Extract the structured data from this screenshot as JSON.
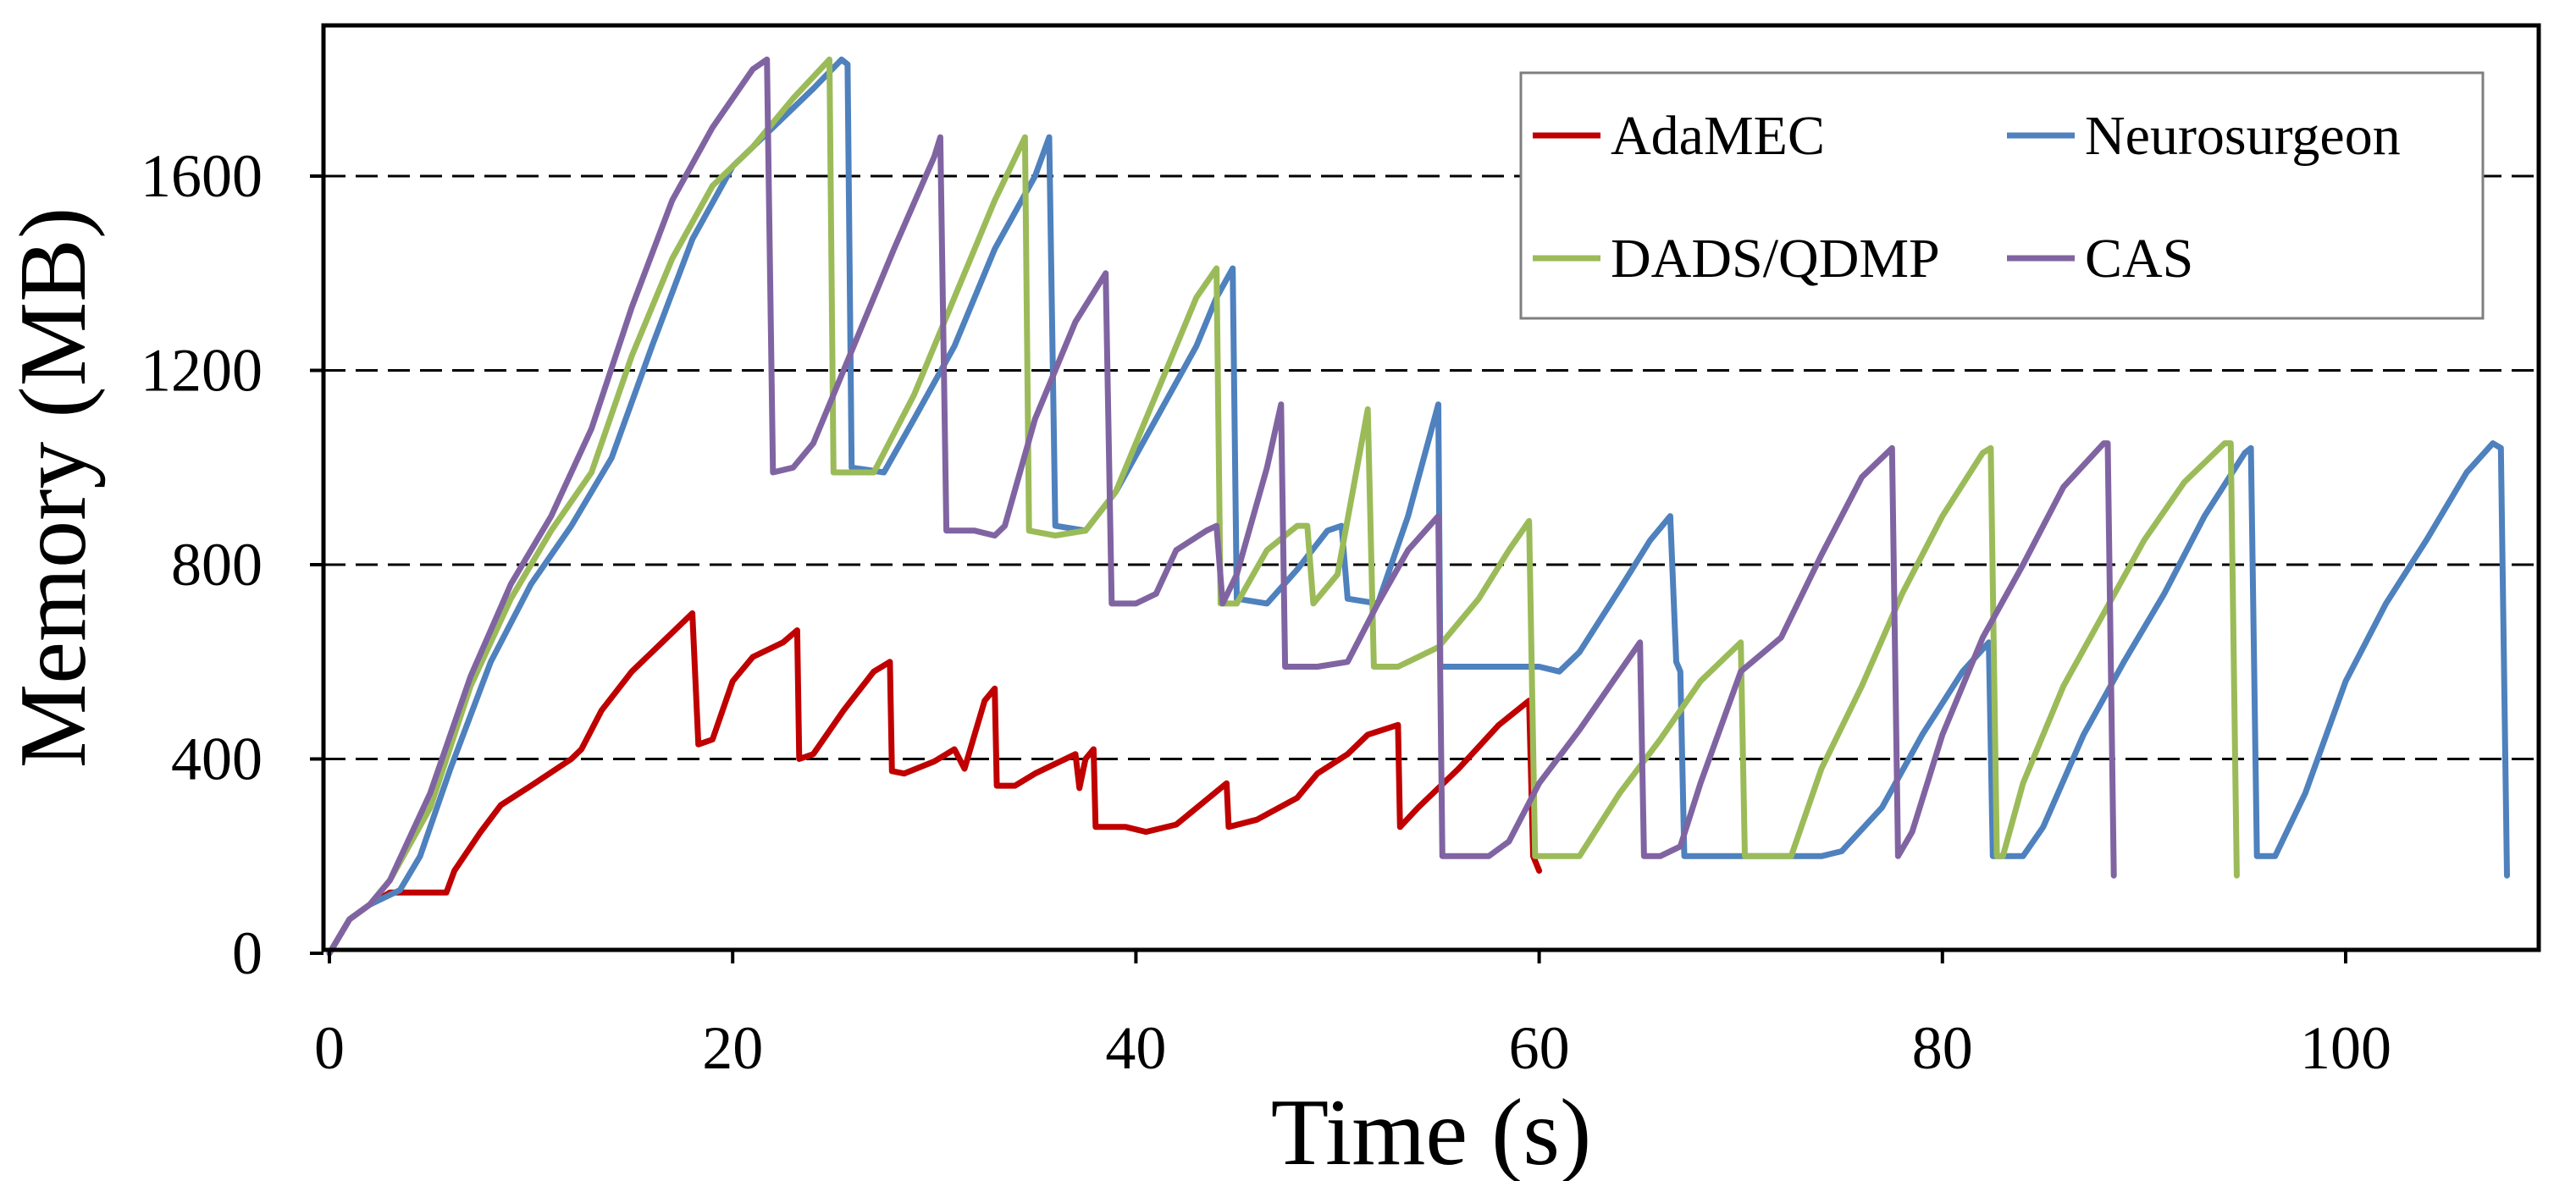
{
  "chart_data": {
    "type": "line",
    "xlabel": "Time (s)",
    "ylabel": "Memory (MB)",
    "xlim": [
      0,
      110
    ],
    "ylim": [
      0,
      1840
    ],
    "xticks": [
      0,
      20,
      40,
      60,
      80,
      100
    ],
    "yticks": [
      0,
      400,
      800,
      1200,
      1600
    ],
    "grid": "horizontal dashed at 400, 800, 1200, 1600",
    "legend_position": "top-right",
    "series": [
      {
        "name": "AdaMEC",
        "color": "#C00000",
        "points": [
          [
            0,
            0
          ],
          [
            1,
            70
          ],
          [
            2,
            100
          ],
          [
            3,
            125
          ],
          [
            5.8,
            125
          ],
          [
            6.2,
            170
          ],
          [
            7.5,
            250
          ],
          [
            8.5,
            305
          ],
          [
            10,
            345
          ],
          [
            12,
            400
          ],
          [
            12.5,
            420
          ],
          [
            13.5,
            500
          ],
          [
            15,
            580
          ],
          [
            16.5,
            640
          ],
          [
            18,
            700
          ],
          [
            18.3,
            430
          ],
          [
            19,
            440
          ],
          [
            20,
            560
          ],
          [
            21,
            610
          ],
          [
            22.5,
            640
          ],
          [
            23.2,
            665
          ],
          [
            23.3,
            400
          ],
          [
            24,
            410
          ],
          [
            25.5,
            500
          ],
          [
            27,
            580
          ],
          [
            27.8,
            600
          ],
          [
            27.9,
            375
          ],
          [
            28.5,
            370
          ],
          [
            30,
            395
          ],
          [
            31,
            420
          ],
          [
            31.5,
            380
          ],
          [
            32,
            450
          ],
          [
            32.5,
            520
          ],
          [
            33,
            545
          ],
          [
            33.1,
            345
          ],
          [
            34,
            345
          ],
          [
            35,
            370
          ],
          [
            36,
            390
          ],
          [
            37,
            410
          ],
          [
            37.2,
            340
          ],
          [
            37.5,
            400
          ],
          [
            37.9,
            420
          ],
          [
            38,
            260
          ],
          [
            39.5,
            260
          ],
          [
            40.5,
            250
          ],
          [
            42,
            265
          ],
          [
            44.5,
            350
          ],
          [
            44.6,
            260
          ],
          [
            46,
            275
          ],
          [
            48,
            320
          ],
          [
            49,
            370
          ],
          [
            50.5,
            410
          ],
          [
            51.5,
            450
          ],
          [
            53,
            470
          ],
          [
            53.1,
            260
          ],
          [
            54,
            300
          ],
          [
            56,
            380
          ],
          [
            58,
            470
          ],
          [
            59.5,
            520
          ],
          [
            59.7,
            200
          ],
          [
            60,
            170
          ]
        ]
      },
      {
        "name": "Neurosurgeon",
        "color": "#4E81BD",
        "points": [
          [
            0,
            0
          ],
          [
            1,
            70
          ],
          [
            2,
            100
          ],
          [
            3.5,
            130
          ],
          [
            4.5,
            200
          ],
          [
            6,
            380
          ],
          [
            8,
            600
          ],
          [
            10,
            760
          ],
          [
            12,
            880
          ],
          [
            14,
            1020
          ],
          [
            16,
            1250
          ],
          [
            18,
            1470
          ],
          [
            20,
            1620
          ],
          [
            22,
            1700
          ],
          [
            24,
            1780
          ],
          [
            25.4,
            1840
          ],
          [
            25.7,
            1830
          ],
          [
            25.9,
            1000
          ],
          [
            27.5,
            990
          ],
          [
            29,
            1100
          ],
          [
            31,
            1250
          ],
          [
            33,
            1450
          ],
          [
            35,
            1600
          ],
          [
            35.7,
            1680
          ],
          [
            36,
            880
          ],
          [
            37.5,
            870
          ],
          [
            39,
            950
          ],
          [
            41,
            1100
          ],
          [
            43,
            1250
          ],
          [
            44,
            1350
          ],
          [
            44.8,
            1410
          ],
          [
            45,
            730
          ],
          [
            46.5,
            720
          ],
          [
            48,
            790
          ],
          [
            49.5,
            870
          ],
          [
            50.2,
            880
          ],
          [
            50.5,
            730
          ],
          [
            52,
            720
          ],
          [
            53.5,
            900
          ],
          [
            55,
            1130
          ],
          [
            55.1,
            590
          ],
          [
            57,
            590
          ],
          [
            60,
            590
          ],
          [
            61,
            580
          ],
          [
            62,
            620
          ],
          [
            64,
            750
          ],
          [
            65.5,
            850
          ],
          [
            66.5,
            900
          ],
          [
            66.8,
            600
          ],
          [
            67,
            580
          ],
          [
            67.2,
            200
          ],
          [
            70,
            200
          ],
          [
            74,
            200
          ],
          [
            75,
            210
          ],
          [
            77,
            300
          ],
          [
            79,
            450
          ],
          [
            81,
            580
          ],
          [
            82.3,
            640
          ],
          [
            82.5,
            200
          ],
          [
            84,
            200
          ],
          [
            85,
            260
          ],
          [
            87,
            450
          ],
          [
            89,
            600
          ],
          [
            91,
            740
          ],
          [
            93,
            900
          ],
          [
            95,
            1030
          ],
          [
            95.3,
            1040
          ],
          [
            95.6,
            200
          ],
          [
            96.5,
            200
          ],
          [
            98,
            330
          ],
          [
            100,
            560
          ],
          [
            102,
            720
          ],
          [
            104,
            850
          ],
          [
            106,
            990
          ],
          [
            107.3,
            1050
          ],
          [
            107.7,
            1040
          ],
          [
            108,
            160
          ]
        ]
      },
      {
        "name": "DADS/QDMP",
        "color": "#9BBB59",
        "points": [
          [
            0,
            0
          ],
          [
            1,
            70
          ],
          [
            2,
            100
          ],
          [
            3,
            150
          ],
          [
            5,
            300
          ],
          [
            7,
            550
          ],
          [
            9,
            730
          ],
          [
            11,
            870
          ],
          [
            13,
            990
          ],
          [
            15,
            1230
          ],
          [
            17,
            1430
          ],
          [
            19,
            1580
          ],
          [
            21,
            1660
          ],
          [
            23,
            1760
          ],
          [
            24.8,
            1840
          ],
          [
            25,
            990
          ],
          [
            27,
            990
          ],
          [
            29,
            1150
          ],
          [
            31,
            1350
          ],
          [
            33,
            1550
          ],
          [
            34.5,
            1680
          ],
          [
            34.7,
            870
          ],
          [
            36,
            860
          ],
          [
            37.5,
            870
          ],
          [
            39,
            950
          ],
          [
            41,
            1150
          ],
          [
            43,
            1350
          ],
          [
            44,
            1410
          ],
          [
            44.2,
            720
          ],
          [
            45,
            720
          ],
          [
            46.5,
            830
          ],
          [
            48,
            880
          ],
          [
            48.5,
            880
          ],
          [
            48.8,
            720
          ],
          [
            50,
            780
          ],
          [
            51.5,
            1120
          ],
          [
            51.8,
            590
          ],
          [
            53,
            590
          ],
          [
            53.5,
            600
          ],
          [
            55,
            630
          ],
          [
            57,
            730
          ],
          [
            58.5,
            830
          ],
          [
            59,
            860
          ],
          [
            59.5,
            890
          ],
          [
            59.8,
            200
          ],
          [
            61,
            200
          ],
          [
            62,
            200
          ],
          [
            64,
            330
          ],
          [
            66,
            440
          ],
          [
            68,
            560
          ],
          [
            70,
            640
          ],
          [
            70.2,
            200
          ],
          [
            72.5,
            200
          ],
          [
            74,
            380
          ],
          [
            76,
            550
          ],
          [
            78,
            740
          ],
          [
            80,
            900
          ],
          [
            82,
            1030
          ],
          [
            82.4,
            1040
          ],
          [
            82.7,
            200
          ],
          [
            83,
            200
          ],
          [
            84,
            350
          ],
          [
            86,
            550
          ],
          [
            88,
            700
          ],
          [
            90,
            850
          ],
          [
            92,
            970
          ],
          [
            94,
            1050
          ],
          [
            94.3,
            1050
          ],
          [
            94.6,
            160
          ]
        ]
      },
      {
        "name": "CAS",
        "color": "#8064A2",
        "points": [
          [
            0,
            0
          ],
          [
            1,
            70
          ],
          [
            2,
            100
          ],
          [
            3,
            150
          ],
          [
            5,
            330
          ],
          [
            7,
            570
          ],
          [
            9,
            760
          ],
          [
            11,
            900
          ],
          [
            13,
            1080
          ],
          [
            15,
            1330
          ],
          [
            17,
            1550
          ],
          [
            19,
            1700
          ],
          [
            21,
            1820
          ],
          [
            21.7,
            1840
          ],
          [
            22,
            990
          ],
          [
            23,
            1000
          ],
          [
            24,
            1050
          ],
          [
            26,
            1250
          ],
          [
            28,
            1450
          ],
          [
            30,
            1640
          ],
          [
            30.3,
            1680
          ],
          [
            30.6,
            870
          ],
          [
            32,
            870
          ],
          [
            33,
            860
          ],
          [
            33.5,
            880
          ],
          [
            35,
            1100
          ],
          [
            37,
            1300
          ],
          [
            38.5,
            1400
          ],
          [
            38.8,
            720
          ],
          [
            40,
            720
          ],
          [
            41,
            740
          ],
          [
            42,
            830
          ],
          [
            43.5,
            870
          ],
          [
            44,
            880
          ],
          [
            44.3,
            720
          ],
          [
            45,
            780
          ],
          [
            46.5,
            1000
          ],
          [
            47.2,
            1130
          ],
          [
            47.4,
            590
          ],
          [
            49,
            590
          ],
          [
            50.5,
            600
          ],
          [
            52,
            720
          ],
          [
            53.5,
            830
          ],
          [
            55,
            900
          ],
          [
            55.2,
            200
          ],
          [
            56,
            200
          ],
          [
            57.5,
            200
          ],
          [
            58.5,
            230
          ],
          [
            60,
            350
          ],
          [
            62,
            460
          ],
          [
            64,
            580
          ],
          [
            65,
            640
          ],
          [
            65.2,
            200
          ],
          [
            66,
            200
          ],
          [
            67,
            220
          ],
          [
            68,
            350
          ],
          [
            70,
            580
          ],
          [
            72,
            650
          ],
          [
            74,
            820
          ],
          [
            76,
            980
          ],
          [
            77.5,
            1040
          ],
          [
            77.8,
            200
          ],
          [
            78.5,
            250
          ],
          [
            80,
            450
          ],
          [
            82,
            650
          ],
          [
            84,
            800
          ],
          [
            86,
            960
          ],
          [
            88,
            1050
          ],
          [
            88.2,
            1050
          ],
          [
            88.5,
            160
          ]
        ]
      }
    ]
  }
}
